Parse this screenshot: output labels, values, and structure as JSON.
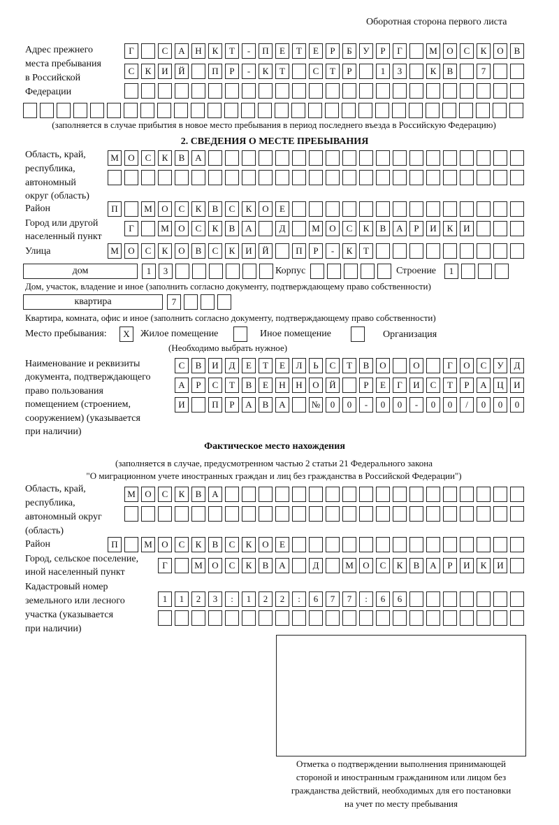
{
  "header": {
    "side_note": "Оборотная сторона первого листа"
  },
  "prev_address": {
    "label": [
      "Адрес прежнего",
      "места пребывания",
      "в Российской",
      "Федерации"
    ],
    "rows": [
      [
        "Г",
        "",
        "С",
        "А",
        "Н",
        "К",
        "Т",
        "-",
        "П",
        "Е",
        "Т",
        "Е",
        "Р",
        "Б",
        "У",
        "Р",
        "Г",
        "",
        "М",
        "О",
        "С",
        "К",
        "О",
        "В"
      ],
      [
        "С",
        "К",
        "И",
        "Й",
        "",
        "П",
        "Р",
        "-",
        "К",
        "Т",
        "",
        "С",
        "Т",
        "Р",
        "",
        "1",
        "3",
        "",
        "К",
        "В",
        "",
        "7"
      ],
      [],
      []
    ],
    "note": "(заполняется в случае прибытия в новое место пребывания в период последнего въезда в Российскую Федерацию)"
  },
  "section2": {
    "title": "2. СВЕДЕНИЯ О МЕСТЕ ПРЕБЫВАНИЯ",
    "region_label": [
      "Область, край,",
      "республика,",
      "автономный",
      "округ (область)"
    ],
    "region_rows": [
      [
        "М",
        "О",
        "С",
        "К",
        "В",
        "А"
      ],
      []
    ],
    "district_label": "Район",
    "district": [
      "П",
      "",
      "М",
      "О",
      "С",
      "К",
      "В",
      "С",
      "К",
      "О",
      "Е"
    ],
    "city_label": [
      "Город или другой",
      "населенный пункт"
    ],
    "city": [
      "Г",
      "",
      "М",
      "О",
      "С",
      "К",
      "В",
      "А",
      "",
      "Д",
      "",
      "М",
      "О",
      "С",
      "К",
      "В",
      "А",
      "Р",
      "И",
      "К",
      "И"
    ],
    "street_label": "Улица",
    "street": [
      "М",
      "О",
      "С",
      "К",
      "О",
      "В",
      "С",
      "К",
      "И",
      "Й",
      "",
      "П",
      "Р",
      "-",
      "К",
      "Т"
    ],
    "house_type": "дом",
    "house": [
      "1",
      "3"
    ],
    "korpus_label": "Корпус",
    "korpus": [],
    "building_label": "Строение",
    "building": [
      "1"
    ],
    "house_note": "Дом, участок, владение и иное (заполнить согласно документу, подтверждающему право собственности)",
    "apt_type": "квартира",
    "apt": [
      "7"
    ],
    "apt_note": "Квартира, комната, офис и иное (заполнить согласно документу, подтверждающему право собственности)",
    "stay_label": "Место пребывания:",
    "stay_options": [
      {
        "label": "Жилое помещение",
        "mark": "X"
      },
      {
        "label": "Иное помещение",
        "mark": ""
      },
      {
        "label": "Организация",
        "mark": ""
      }
    ],
    "stay_hint": "(Необходимо выбрать нужное)",
    "doc_label": [
      "Наименование и реквизиты",
      "документа, подтверждающего",
      "право пользования",
      "помещением (строением,",
      "сооружением) (указывается",
      "при наличии)"
    ],
    "doc_rows": [
      [
        "С",
        "В",
        "И",
        "Д",
        "Е",
        "Т",
        "Е",
        "Л",
        "Ь",
        "С",
        "Т",
        "В",
        "О",
        "",
        "О",
        "",
        "Г",
        "О",
        "С",
        "У",
        "Д"
      ],
      [
        "А",
        "Р",
        "С",
        "Т",
        "В",
        "Е",
        "Н",
        "Н",
        "О",
        "Й",
        "",
        "Р",
        "Е",
        "Г",
        "И",
        "С",
        "Т",
        "Р",
        "А",
        "Ц",
        "И"
      ],
      [
        "И",
        "",
        "П",
        "Р",
        "А",
        "В",
        "А",
        "",
        "№",
        "0",
        "0",
        "-",
        "0",
        "0",
        "-",
        "0",
        "0",
        "/",
        "0",
        "0",
        "0"
      ]
    ]
  },
  "actual": {
    "title": "Фактическое место нахождения",
    "note": [
      "(заполняется в случае, предусмотренном частью 2 статьи 21 Федерального закона",
      "\"О миграционном учете иностранных граждан и лиц без гражданства в Российской Федерации\")"
    ],
    "region_label": [
      "Область, край,",
      "республика,",
      "автономный округ",
      "(область)"
    ],
    "region_rows": [
      [
        "М",
        "О",
        "С",
        "К",
        "В",
        "А"
      ],
      []
    ],
    "district_label": "Район",
    "district": [
      "П",
      "",
      "М",
      "О",
      "С",
      "К",
      "В",
      "С",
      "К",
      "О",
      "Е"
    ],
    "city_label": [
      "Город, сельское поселение,",
      "иной населенный пункт"
    ],
    "city": [
      "Г",
      "",
      "М",
      "О",
      "С",
      "К",
      "В",
      "А",
      "",
      "Д",
      "",
      "М",
      "О",
      "С",
      "К",
      "В",
      "А",
      "Р",
      "И",
      "К",
      "И"
    ],
    "cadastre_label": [
      "Кадастровый номер",
      "земельного или лесного",
      "участка (указывается",
      "при наличии)"
    ],
    "cadastre_rows": [
      [
        "1",
        "1",
        "2",
        "3",
        ":",
        "1",
        "2",
        "2",
        ":",
        "6",
        "7",
        "7",
        ":",
        "6",
        "6"
      ],
      []
    ]
  },
  "stamp": {
    "caption": [
      "Отметка о подтверждении выполнения принимающей",
      "стороной и иностранным гражданином или лицом без",
      "гражданства действий, необходимых для его постановки",
      "на учет по месту пребывания"
    ]
  }
}
